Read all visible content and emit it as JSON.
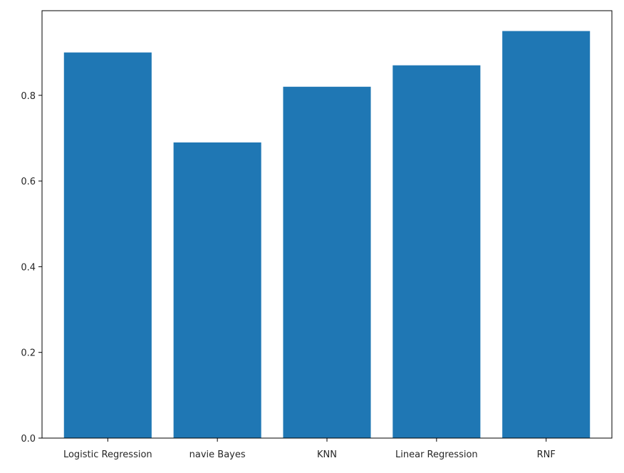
{
  "chart_data": {
    "type": "bar",
    "categories": [
      "Logistic Regression",
      "navie Bayes",
      "KNN",
      "Linear Regression",
      "RNF"
    ],
    "values": [
      0.9,
      0.69,
      0.82,
      0.87,
      0.95
    ],
    "title": "",
    "xlabel": "",
    "ylabel": "",
    "ylim": [
      0,
      1.0
    ],
    "yticks": [
      "0.0",
      "0.2",
      "0.4",
      "0.6",
      "0.8"
    ],
    "grid": false,
    "bar_color": "#1f77b4"
  }
}
